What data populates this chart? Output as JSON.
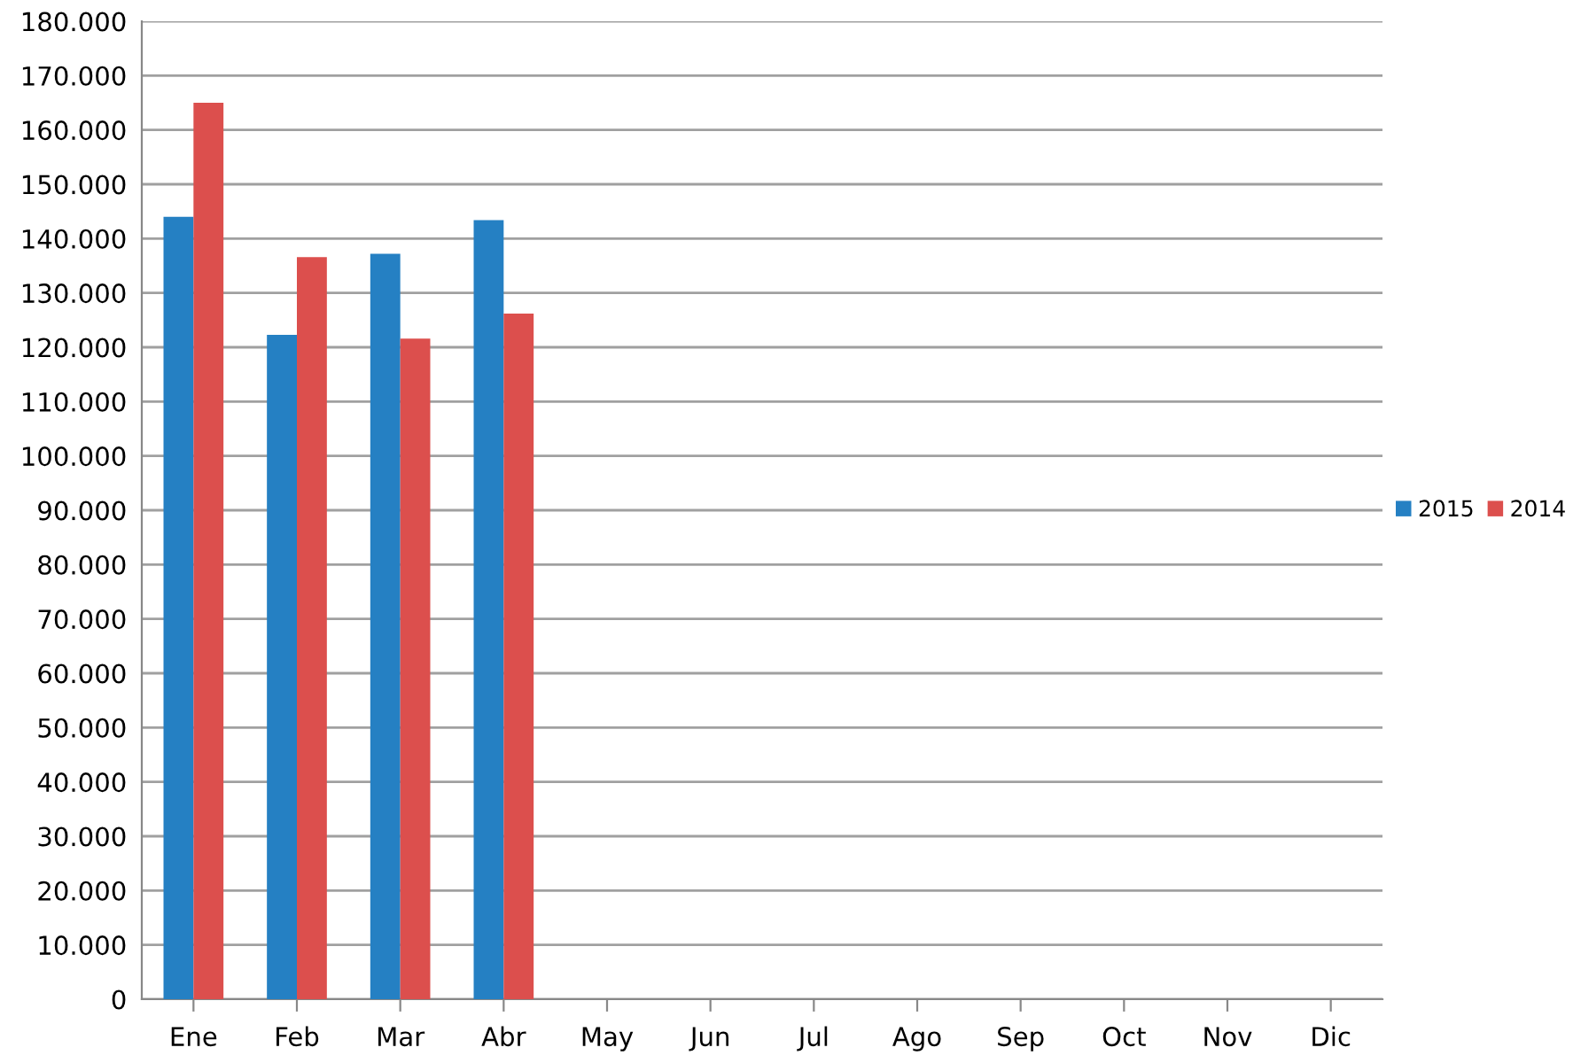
{
  "chart_data": {
    "type": "bar",
    "categories": [
      "Ene",
      "Feb",
      "Mar",
      "Abr",
      "May",
      "Jun",
      "Jul",
      "Ago",
      "Sep",
      "Oct",
      "Nov",
      "Dic"
    ],
    "series": [
      {
        "name": "2015",
        "color": "#2580c3",
        "values": [
          144000,
          122300,
          137200,
          143400,
          null,
          null,
          null,
          null,
          null,
          null,
          null,
          null
        ]
      },
      {
        "name": "2014",
        "color": "#dc4f4d",
        "values": [
          165000,
          136600,
          121600,
          126200,
          null,
          null,
          null,
          null,
          null,
          null,
          null,
          null
        ]
      }
    ],
    "ylim": [
      0,
      180000
    ],
    "yticks": [
      0,
      {
        "value": 10000,
        "label": "10.000"
      },
      {
        "value": 20000,
        "label": "20.000"
      },
      {
        "value": 30000,
        "label": "30.000"
      },
      {
        "value": 40000,
        "label": "40.000"
      },
      {
        "value": 50000,
        "label": "50.000"
      },
      {
        "value": 60000,
        "label": "60.000"
      },
      {
        "value": 70000,
        "label": "70.000"
      },
      {
        "value": 80000,
        "label": "80.000"
      },
      {
        "value": 90000,
        "label": "90.000"
      },
      {
        "value": 100000,
        "label": "100.000"
      },
      {
        "value": 110000,
        "label": "110.000"
      },
      {
        "value": 120000,
        "label": "120.000"
      },
      {
        "value": 130000,
        "label": "130.000"
      },
      {
        "value": 140000,
        "label": "140.000"
      },
      {
        "value": 150000,
        "label": "150.000"
      },
      {
        "value": 160000,
        "label": "160.000"
      },
      {
        "value": 170000,
        "label": "170.000"
      },
      {
        "value": 180000,
        "label": "180.000"
      }
    ],
    "grid": "y",
    "legend": "right"
  }
}
